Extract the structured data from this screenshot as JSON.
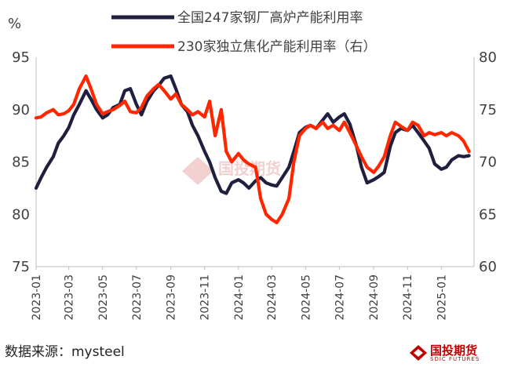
{
  "unit_left": "%",
  "legend": [
    {
      "label": "全国247家钢厂高炉产能利用率",
      "color": "#1f1f3f"
    },
    {
      "label": "230家独立焦化产能利用率（右）",
      "color": "#ff2600"
    }
  ],
  "source_text": "数据来源：mysteel",
  "logo_text": "国投期货",
  "logo_sub": "SDIC FUTURES",
  "watermark_text": "国投期货",
  "chart_data": {
    "type": "line",
    "x_labels": [
      "2023-01",
      "2023-03",
      "2023-05",
      "2023-07",
      "2023-09",
      "2023-11",
      "2024-01",
      "2024-03",
      "2024-05",
      "2024-07",
      "2024-09",
      "2024-11",
      "2025-01"
    ],
    "x_range": [
      "2023-01-01",
      "2025-03-01"
    ],
    "y_left": {
      "min": 75,
      "max": 95,
      "ticks": [
        75,
        80,
        85,
        90,
        95
      ]
    },
    "y_right": {
      "min": 60,
      "max": 80,
      "ticks": [
        60,
        65,
        70,
        75,
        80
      ]
    },
    "grid": false,
    "series": [
      {
        "name": "全国247家钢厂高炉产能利用率",
        "axis": "left",
        "color": "#1f1f3f",
        "points": [
          [
            "2023-01-01",
            82.5
          ],
          [
            "2023-01-10",
            83.5
          ],
          [
            "2023-01-20",
            84.5
          ],
          [
            "2023-02-01",
            85.5
          ],
          [
            "2023-02-10",
            86.8
          ],
          [
            "2023-02-20",
            87.5
          ],
          [
            "2023-03-01",
            88.3
          ],
          [
            "2023-03-10",
            89.5
          ],
          [
            "2023-03-20",
            90.5
          ],
          [
            "2023-04-01",
            91.8
          ],
          [
            "2023-04-10",
            91.0
          ],
          [
            "2023-04-20",
            90.0
          ],
          [
            "2023-05-01",
            89.2
          ],
          [
            "2023-05-10",
            89.5
          ],
          [
            "2023-05-20",
            90.2
          ],
          [
            "2023-06-01",
            90.5
          ],
          [
            "2023-06-10",
            91.8
          ],
          [
            "2023-06-20",
            92.0
          ],
          [
            "2023-07-01",
            90.5
          ],
          [
            "2023-07-10",
            89.5
          ],
          [
            "2023-07-20",
            90.8
          ],
          [
            "2023-08-01",
            91.8
          ],
          [
            "2023-08-10",
            92.3
          ],
          [
            "2023-08-20",
            93.0
          ],
          [
            "2023-09-01",
            93.2
          ],
          [
            "2023-09-10",
            92.0
          ],
          [
            "2023-09-20",
            90.5
          ],
          [
            "2023-10-01",
            89.8
          ],
          [
            "2023-10-10",
            88.5
          ],
          [
            "2023-10-20",
            87.5
          ],
          [
            "2023-11-01",
            86.0
          ],
          [
            "2023-11-10",
            85.0
          ],
          [
            "2023-11-20",
            83.5
          ],
          [
            "2023-12-01",
            82.2
          ],
          [
            "2023-12-10",
            82.0
          ],
          [
            "2023-12-20",
            83.0
          ],
          [
            "2024-01-01",
            83.3
          ],
          [
            "2024-01-10",
            83.0
          ],
          [
            "2024-01-20",
            82.5
          ],
          [
            "2024-02-01",
            83.2
          ],
          [
            "2024-02-10",
            83.5
          ],
          [
            "2024-02-20",
            83.0
          ],
          [
            "2024-03-01",
            82.8
          ],
          [
            "2024-03-10",
            82.7
          ],
          [
            "2024-03-20",
            83.5
          ],
          [
            "2024-04-01",
            84.5
          ],
          [
            "2024-04-10",
            86.0
          ],
          [
            "2024-04-20",
            87.8
          ],
          [
            "2024-05-01",
            88.3
          ],
          [
            "2024-05-10",
            88.5
          ],
          [
            "2024-05-20",
            88.2
          ],
          [
            "2024-06-01",
            89.0
          ],
          [
            "2024-06-10",
            89.6
          ],
          [
            "2024-06-20",
            88.8
          ],
          [
            "2024-07-01",
            89.3
          ],
          [
            "2024-07-10",
            89.6
          ],
          [
            "2024-07-20",
            88.6
          ],
          [
            "2024-08-01",
            86.5
          ],
          [
            "2024-08-10",
            84.5
          ],
          [
            "2024-08-20",
            83.0
          ],
          [
            "2024-09-01",
            83.3
          ],
          [
            "2024-09-10",
            83.6
          ],
          [
            "2024-09-20",
            84.0
          ],
          [
            "2024-10-01",
            86.5
          ],
          [
            "2024-10-10",
            87.8
          ],
          [
            "2024-10-20",
            88.2
          ],
          [
            "2024-11-01",
            88.0
          ],
          [
            "2024-11-10",
            88.5
          ],
          [
            "2024-11-20",
            87.8
          ],
          [
            "2024-12-01",
            87.0
          ],
          [
            "2024-12-10",
            86.3
          ],
          [
            "2024-12-20",
            84.8
          ],
          [
            "2025-01-01",
            84.3
          ],
          [
            "2025-01-10",
            84.5
          ],
          [
            "2025-01-20",
            85.2
          ],
          [
            "2025-02-01",
            85.6
          ],
          [
            "2025-02-10",
            85.5
          ],
          [
            "2025-02-20",
            85.6
          ]
        ]
      },
      {
        "name": "230家独立焦化产能利用率（右）",
        "axis": "right",
        "color": "#ff2600",
        "points": [
          [
            "2023-01-01",
            74.2
          ],
          [
            "2023-01-10",
            74.3
          ],
          [
            "2023-01-20",
            74.7
          ],
          [
            "2023-02-01",
            75.0
          ],
          [
            "2023-02-10",
            74.5
          ],
          [
            "2023-02-20",
            74.6
          ],
          [
            "2023-03-01",
            74.9
          ],
          [
            "2023-03-10",
            75.5
          ],
          [
            "2023-03-20",
            77.0
          ],
          [
            "2023-04-01",
            78.2
          ],
          [
            "2023-04-10",
            77.0
          ],
          [
            "2023-04-20",
            75.5
          ],
          [
            "2023-05-01",
            74.6
          ],
          [
            "2023-05-10",
            74.8
          ],
          [
            "2023-05-20",
            75.0
          ],
          [
            "2023-06-01",
            75.4
          ],
          [
            "2023-06-10",
            75.8
          ],
          [
            "2023-06-20",
            74.8
          ],
          [
            "2023-07-01",
            74.7
          ],
          [
            "2023-07-10",
            75.2
          ],
          [
            "2023-07-20",
            76.3
          ],
          [
            "2023-08-01",
            77.0
          ],
          [
            "2023-08-10",
            77.4
          ],
          [
            "2023-08-20",
            76.8
          ],
          [
            "2023-09-01",
            76.0
          ],
          [
            "2023-09-10",
            76.5
          ],
          [
            "2023-09-20",
            75.5
          ],
          [
            "2023-10-01",
            75.0
          ],
          [
            "2023-10-10",
            74.5
          ],
          [
            "2023-10-20",
            74.8
          ],
          [
            "2023-11-01",
            74.3
          ],
          [
            "2023-11-10",
            75.8
          ],
          [
            "2023-11-20",
            72.5
          ],
          [
            "2023-12-01",
            75.0
          ],
          [
            "2023-12-10",
            71.0
          ],
          [
            "2023-12-20",
            70.0
          ],
          [
            "2024-01-01",
            70.8
          ],
          [
            "2024-01-10",
            70.2
          ],
          [
            "2024-01-20",
            69.8
          ],
          [
            "2024-02-01",
            69.5
          ],
          [
            "2024-02-10",
            66.5
          ],
          [
            "2024-02-20",
            65.0
          ],
          [
            "2024-03-01",
            64.5
          ],
          [
            "2024-03-10",
            64.2
          ],
          [
            "2024-03-20",
            65.0
          ],
          [
            "2024-04-01",
            66.5
          ],
          [
            "2024-04-10",
            70.0
          ],
          [
            "2024-04-20",
            72.5
          ],
          [
            "2024-05-01",
            73.2
          ],
          [
            "2024-05-10",
            73.5
          ],
          [
            "2024-05-20",
            73.2
          ],
          [
            "2024-06-01",
            73.8
          ],
          [
            "2024-06-10",
            73.2
          ],
          [
            "2024-06-20",
            73.5
          ],
          [
            "2024-07-01",
            73.0
          ],
          [
            "2024-07-10",
            73.8
          ],
          [
            "2024-07-20",
            72.8
          ],
          [
            "2024-08-01",
            71.5
          ],
          [
            "2024-08-10",
            70.5
          ],
          [
            "2024-08-20",
            69.5
          ],
          [
            "2024-09-01",
            69.0
          ],
          [
            "2024-09-10",
            69.6
          ],
          [
            "2024-09-20",
            70.5
          ],
          [
            "2024-10-01",
            72.5
          ],
          [
            "2024-10-10",
            73.8
          ],
          [
            "2024-10-20",
            73.4
          ],
          [
            "2024-11-01",
            73.0
          ],
          [
            "2024-11-10",
            73.8
          ],
          [
            "2024-11-20",
            73.5
          ],
          [
            "2024-12-01",
            72.5
          ],
          [
            "2024-12-10",
            72.8
          ],
          [
            "2024-12-20",
            72.6
          ],
          [
            "2025-01-01",
            72.8
          ],
          [
            "2025-01-10",
            72.5
          ],
          [
            "2025-01-20",
            72.8
          ],
          [
            "2025-02-01",
            72.5
          ],
          [
            "2025-02-10",
            72.0
          ],
          [
            "2025-02-20",
            71.0
          ]
        ]
      }
    ]
  }
}
